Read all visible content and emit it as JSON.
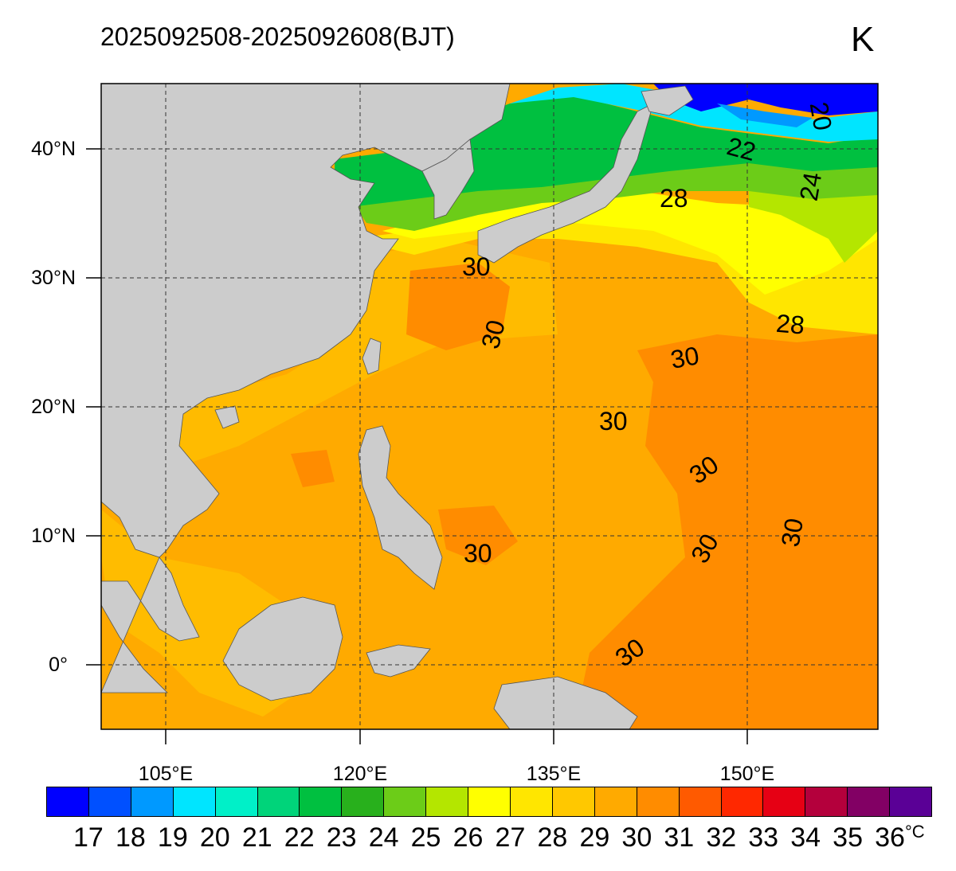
{
  "title": {
    "period": "2025092508-2025092608(BJT)",
    "mark": "K"
  },
  "axes": {
    "lat_labels": [
      "40°N",
      "30°N",
      "20°N",
      "10°N",
      "0°"
    ],
    "lon_labels": [
      "105°E",
      "120°E",
      "135°E",
      "150°E"
    ],
    "lat_range": [
      -5,
      45
    ],
    "lon_range": [
      100,
      160
    ]
  },
  "contour_labels": [
    "20",
    "22",
    "24",
    "28",
    "30",
    "30",
    "30",
    "28",
    "30",
    "30",
    "30",
    "30",
    "30",
    "30"
  ],
  "colorbar": {
    "labels": [
      "17",
      "18",
      "19",
      "20",
      "21",
      "22",
      "23",
      "24",
      "25",
      "26",
      "27",
      "28",
      "29",
      "30",
      "31",
      "32",
      "33",
      "34",
      "35",
      "36"
    ],
    "unit": "°C",
    "colors": [
      "#0000ff",
      "#0050ff",
      "#0099ff",
      "#00e5ff",
      "#00f0c8",
      "#00d47a",
      "#00c040",
      "#28b01c",
      "#6ccc18",
      "#b4e600",
      "#ffff00",
      "#ffe600",
      "#ffc800",
      "#ffaa00",
      "#ff8c00",
      "#ff5a00",
      "#ff2800",
      "#e60014",
      "#b4003c",
      "#820064",
      "#5a0096"
    ]
  }
}
